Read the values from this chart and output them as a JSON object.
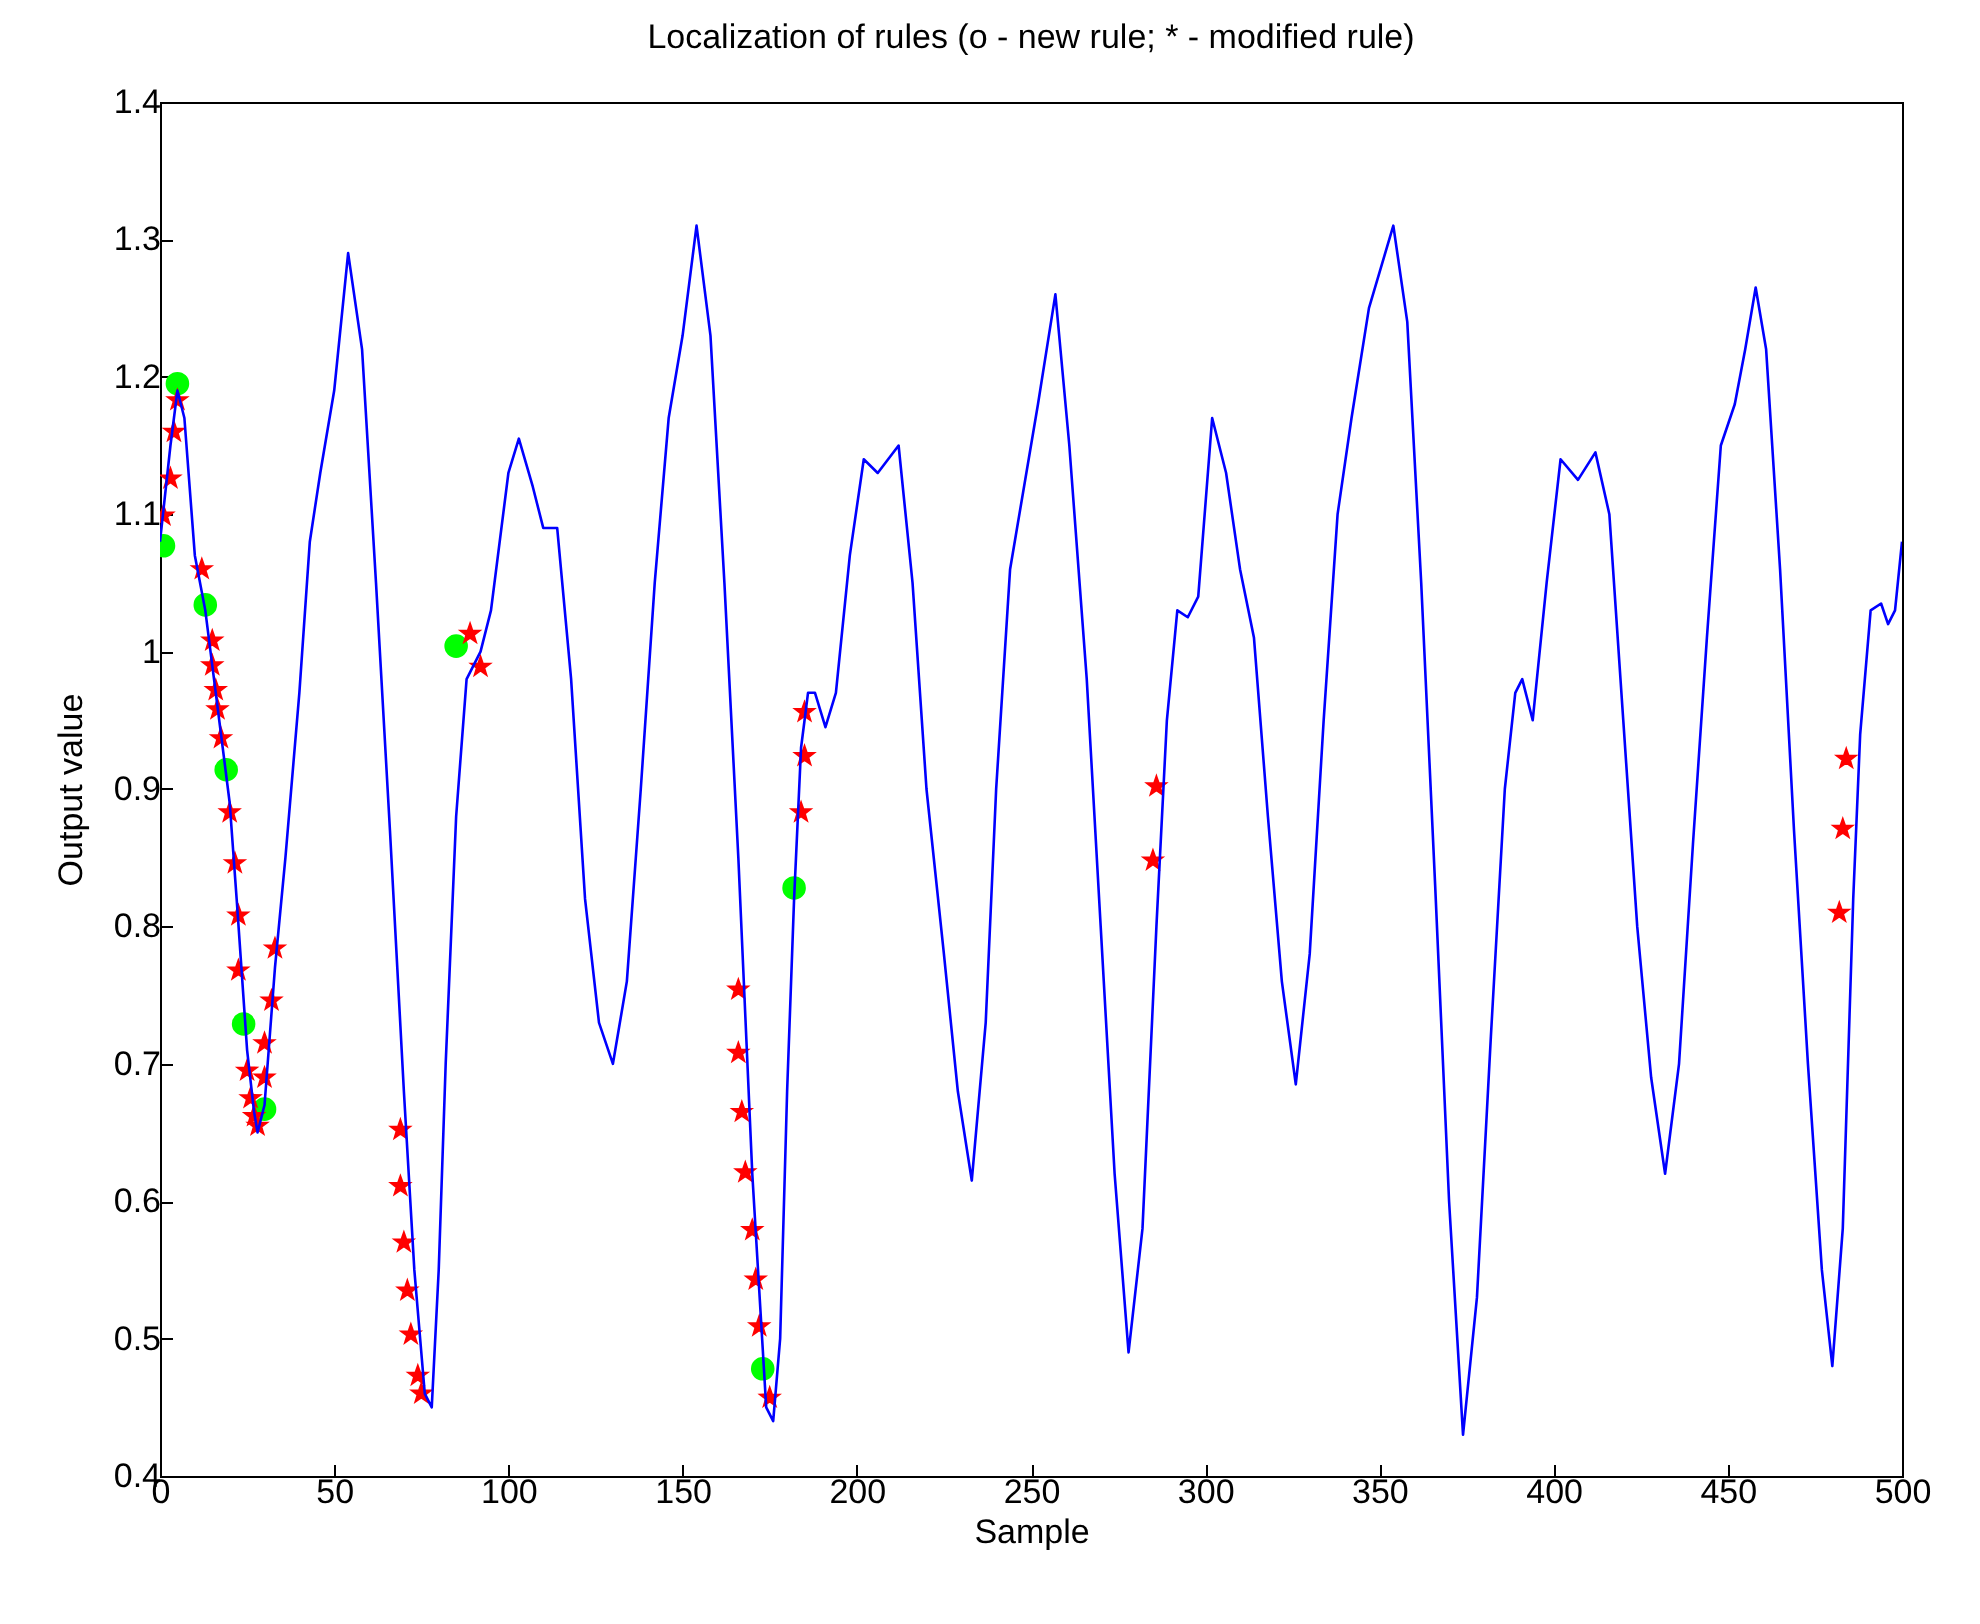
{
  "chart_data": {
    "type": "line",
    "title": "Localization of rules (o - new rule; * - modified rule)",
    "xlabel": "Sample",
    "ylabel": "Output value",
    "xlim": [
      0,
      500
    ],
    "xticks": [
      0,
      50,
      100,
      150,
      200,
      250,
      300,
      350,
      400,
      450,
      500
    ],
    "ylim": [
      0.4,
      1.4
    ],
    "yticks": [
      0.4,
      0.5,
      0.6,
      0.7,
      0.8,
      0.9,
      1,
      1.1,
      1.2,
      1.3,
      1.4
    ],
    "grid": false,
    "series": [
      {
        "color": "#0000ff",
        "marker": "none",
        "x": [
          0,
          3,
          5,
          7,
          10,
          13,
          15,
          18,
          20,
          22,
          25,
          27,
          28,
          30,
          33,
          36,
          40,
          43,
          46,
          50,
          54,
          58,
          62,
          66,
          70,
          73,
          76,
          78,
          80,
          82,
          85,
          88,
          92,
          95,
          100,
          103,
          107,
          110,
          114,
          118,
          122,
          126,
          130,
          134,
          138,
          142,
          146,
          150,
          154,
          158,
          162,
          166,
          170,
          174,
          176,
          178,
          180,
          182,
          184,
          186,
          188,
          191,
          194,
          198,
          202,
          206,
          209,
          212,
          216,
          220,
          225,
          229,
          233,
          237,
          240,
          244,
          248,
          252,
          257,
          261,
          266,
          270,
          274,
          278,
          282,
          286,
          289,
          292,
          295,
          298,
          302,
          306,
          310,
          314,
          318,
          322,
          326,
          330,
          334,
          338,
          342,
          347,
          354,
          358,
          362,
          366,
          370,
          374,
          378,
          382,
          386,
          389,
          391,
          394,
          398,
          402,
          407,
          412,
          416,
          420,
          424,
          428,
          432,
          436,
          440,
          444,
          448,
          452,
          455,
          458,
          461,
          465,
          469,
          473,
          477,
          480,
          483,
          486,
          488,
          491,
          494,
          496,
          498,
          500
        ],
        "values": [
          1.08,
          1.15,
          1.19,
          1.17,
          1.07,
          1.03,
          0.99,
          0.93,
          0.89,
          0.82,
          0.71,
          0.665,
          0.65,
          0.67,
          0.77,
          0.85,
          0.97,
          1.08,
          1.13,
          1.19,
          1.29,
          1.22,
          1.05,
          0.87,
          0.68,
          0.55,
          0.46,
          0.45,
          0.55,
          0.7,
          0.88,
          0.98,
          1.0,
          1.03,
          1.13,
          1.155,
          1.12,
          1.09,
          1.09,
          0.98,
          0.82,
          0.73,
          0.7,
          0.76,
          0.9,
          1.05,
          1.17,
          1.23,
          1.31,
          1.23,
          1.05,
          0.85,
          0.62,
          0.45,
          0.44,
          0.5,
          0.68,
          0.82,
          0.93,
          0.97,
          0.97,
          0.945,
          0.97,
          1.07,
          1.14,
          1.13,
          1.14,
          1.15,
          1.05,
          0.9,
          0.78,
          0.68,
          0.615,
          0.73,
          0.9,
          1.06,
          1.12,
          1.18,
          1.26,
          1.15,
          0.98,
          0.8,
          0.62,
          0.49,
          0.58,
          0.8,
          0.95,
          1.03,
          1.025,
          1.04,
          1.17,
          1.13,
          1.06,
          1.01,
          0.88,
          0.76,
          0.685,
          0.78,
          0.95,
          1.1,
          1.17,
          1.25,
          1.31,
          1.24,
          1.05,
          0.83,
          0.6,
          0.43,
          0.53,
          0.72,
          0.9,
          0.97,
          0.98,
          0.95,
          1.05,
          1.14,
          1.125,
          1.145,
          1.1,
          0.95,
          0.8,
          0.69,
          0.62,
          0.7,
          0.86,
          1.01,
          1.15,
          1.18,
          1.22,
          1.265,
          1.22,
          1.06,
          0.87,
          0.7,
          0.55,
          0.48,
          0.58,
          0.82,
          0.94,
          1.03,
          1.035,
          1.02,
          1.03,
          1.08
        ]
      },
      {
        "type": "scatter",
        "color": "#00ff00",
        "marker": "circle",
        "x": [
          1,
          5,
          13,
          19,
          24,
          30,
          85,
          182,
          173
        ],
        "values": [
          1.077,
          1.195,
          1.034,
          0.914,
          0.729,
          0.667,
          1.004,
          0.828,
          0.478
        ]
      },
      {
        "type": "scatter",
        "color": "#ff0000",
        "marker": "star",
        "x": [
          1,
          3,
          4,
          5,
          12,
          15,
          15,
          16,
          16.5,
          17.5,
          20,
          21.5,
          22.5,
          22.5,
          25,
          26,
          27,
          28,
          30,
          30,
          32,
          33,
          69,
          69,
          70,
          71,
          72,
          74,
          75,
          89,
          92,
          166,
          166,
          167,
          168,
          170,
          171,
          172,
          175,
          184,
          185,
          185,
          285,
          286,
          482,
          483,
          484
        ],
        "values": [
          1.099,
          1.126,
          1.16,
          1.183,
          1.06,
          1.008,
          0.99,
          0.972,
          0.958,
          0.937,
          0.883,
          0.846,
          0.808,
          0.768,
          0.695,
          0.675,
          0.662,
          0.655,
          0.69,
          0.715,
          0.746,
          0.784,
          0.652,
          0.611,
          0.57,
          0.535,
          0.503,
          0.473,
          0.46,
          1.013,
          0.989,
          0.754,
          0.708,
          0.665,
          0.621,
          0.579,
          0.543,
          0.509,
          0.457,
          0.883,
          0.924,
          0.956,
          0.848,
          0.902,
          0.81,
          0.871,
          0.922
        ]
      }
    ]
  }
}
